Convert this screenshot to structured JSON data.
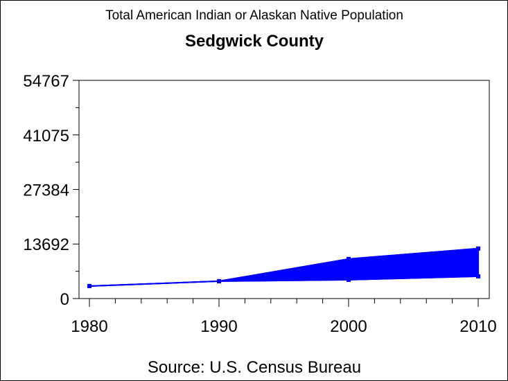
{
  "chart_data": {
    "type": "area",
    "title": "Total American Indian or Alaskan Native Population",
    "subtitle": "Sedgwick County",
    "footnote": "Source: U.S. Census Bureau",
    "xlabel": "",
    "ylabel": "",
    "x": [
      1980,
      1990,
      2000,
      2010
    ],
    "xlim": [
      1980,
      2010
    ],
    "ylim": [
      0,
      54767
    ],
    "x_ticks": [
      1980,
      1990,
      2000,
      2010
    ],
    "y_ticks": [
      0,
      13692,
      27384,
      41075,
      54767
    ],
    "series": [
      {
        "values": [
          3140,
          4360,
          9940,
          12560
        ]
      },
      {
        "values": [
          3140,
          4360,
          4710,
          5580
        ]
      }
    ],
    "grid": false,
    "color": "#0000ff"
  }
}
